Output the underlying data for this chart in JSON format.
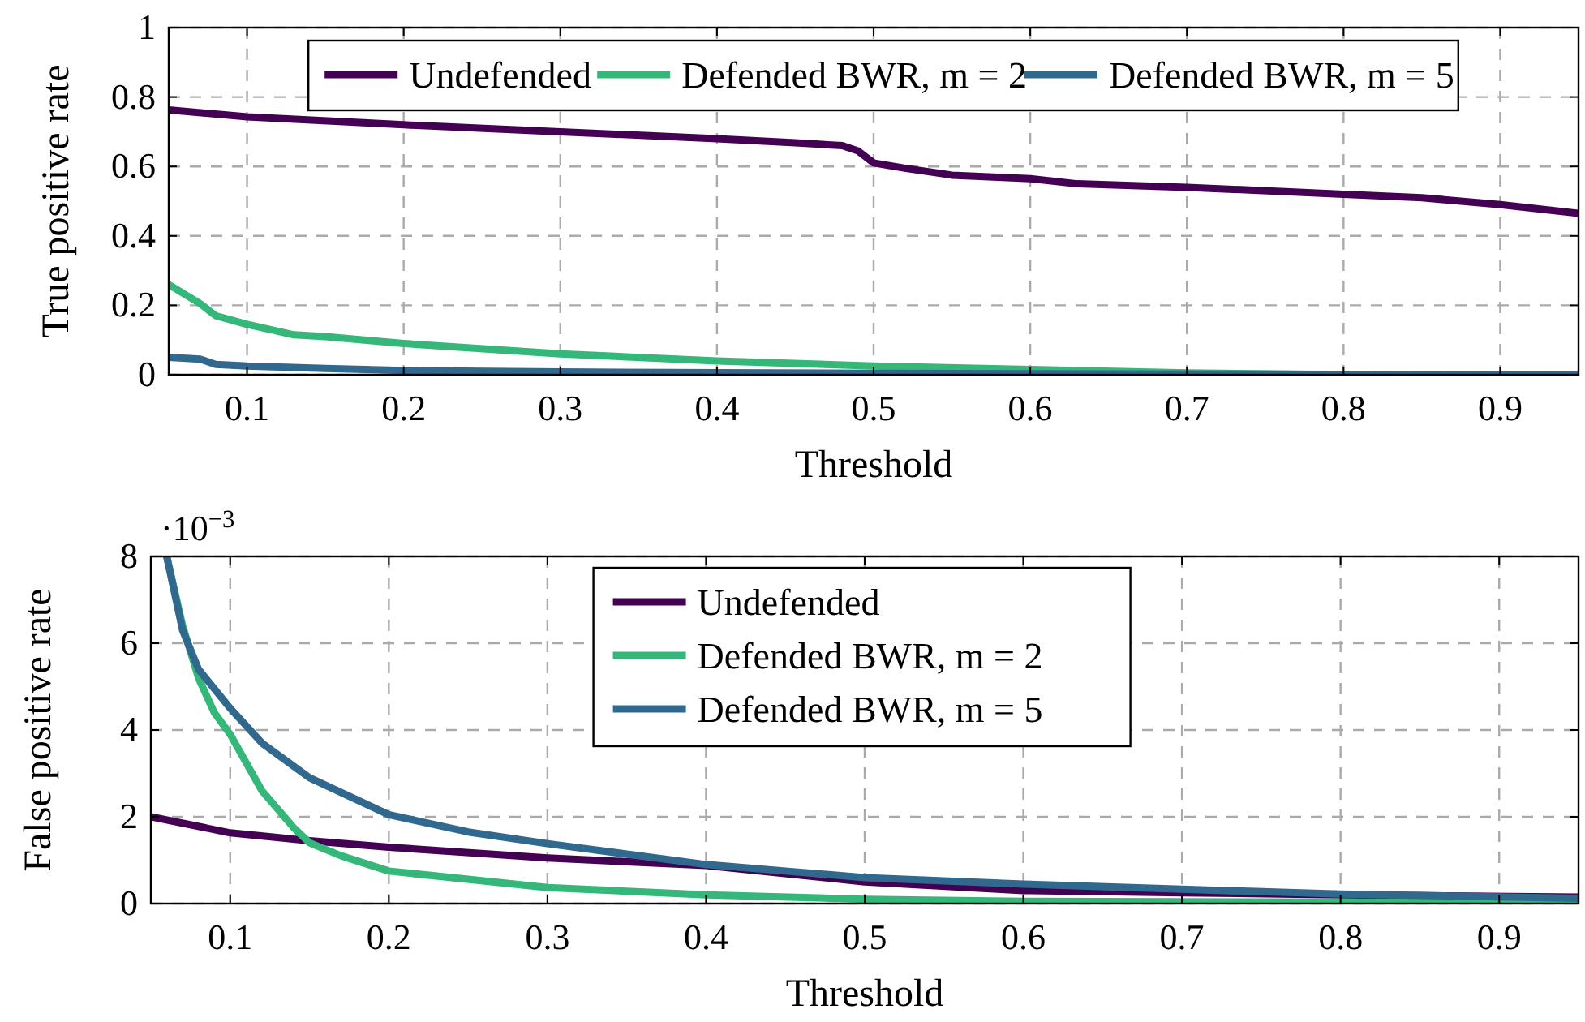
{
  "chart_data": [
    {
      "type": "line",
      "xlabel": "Threshold",
      "ylabel": "True positive rate",
      "xlim": [
        0.05,
        0.95
      ],
      "ylim": [
        0,
        1
      ],
      "xticks": [
        0.1,
        0.2,
        0.3,
        0.4,
        0.5,
        0.6,
        0.7,
        0.8,
        0.9
      ],
      "yticks": [
        0,
        0.2,
        0.4,
        0.6,
        0.8,
        1
      ],
      "grid": true,
      "legend": "top",
      "line_style": "solid",
      "marker": "none",
      "series": [
        {
          "name": "Undefended",
          "color": "#440154",
          "x": [
            0.05,
            0.1,
            0.2,
            0.3,
            0.4,
            0.45,
            0.48,
            0.49,
            0.5,
            0.52,
            0.55,
            0.6,
            0.63,
            0.7,
            0.8,
            0.85,
            0.9,
            0.95
          ],
          "values": [
            0.763,
            0.743,
            0.72,
            0.7,
            0.68,
            0.668,
            0.66,
            0.645,
            0.61,
            0.595,
            0.575,
            0.565,
            0.55,
            0.54,
            0.52,
            0.51,
            0.49,
            0.465
          ]
        },
        {
          "name": "Defended BWR, m = 2",
          "color": "#35b779",
          "x": [
            0.05,
            0.07,
            0.08,
            0.1,
            0.13,
            0.15,
            0.2,
            0.3,
            0.4,
            0.5,
            0.6,
            0.7,
            0.8,
            0.95
          ],
          "values": [
            0.26,
            0.205,
            0.17,
            0.145,
            0.115,
            0.11,
            0.09,
            0.06,
            0.04,
            0.025,
            0.015,
            0.005,
            0,
            0
          ]
        },
        {
          "name": "Defended BWR, m = 5",
          "color": "#31688e",
          "x": [
            0.05,
            0.07,
            0.08,
            0.1,
            0.15,
            0.2,
            0.3,
            0.5,
            0.7,
            0.95
          ],
          "values": [
            0.05,
            0.045,
            0.03,
            0.025,
            0.018,
            0.012,
            0.008,
            0.004,
            0.002,
            0
          ]
        }
      ]
    },
    {
      "type": "line",
      "xlabel": "Threshold",
      "ylabel": "False positive rate",
      "annotations": [
        "·10$^{−3}$"
      ],
      "xlim": [
        0.05,
        0.95
      ],
      "ylim": [
        0,
        8
      ],
      "xticks": [
        0.1,
        0.2,
        0.3,
        0.4,
        0.5,
        0.6,
        0.7,
        0.8,
        0.9
      ],
      "yticks": [
        0,
        2,
        4,
        6,
        8
      ],
      "grid": true,
      "legend": "top center",
      "line_style": "solid",
      "marker": "none",
      "series": [
        {
          "name": "Undefended",
          "color": "#440154",
          "x": [
            0.05,
            0.1,
            0.15,
            0.2,
            0.3,
            0.4,
            0.5,
            0.6,
            0.7,
            0.8,
            0.95
          ],
          "values": [
            2.0,
            1.63,
            1.45,
            1.3,
            1.05,
            0.88,
            0.5,
            0.3,
            0.25,
            0.2,
            0.15
          ]
        },
        {
          "name": "Defended BWR, m = 2",
          "color": "#35b779",
          "x": [
            0.06,
            0.07,
            0.08,
            0.09,
            0.1,
            0.12,
            0.14,
            0.15,
            0.17,
            0.2,
            0.3,
            0.4,
            0.5,
            0.6,
            0.95
          ],
          "values": [
            8,
            6.4,
            5.2,
            4.4,
            3.9,
            2.6,
            1.75,
            1.4,
            1.1,
            0.75,
            0.37,
            0.2,
            0.1,
            0.05,
            0.02
          ]
        },
        {
          "name": "Defended BWR, m = 5",
          "color": "#31688e",
          "x": [
            0.06,
            0.07,
            0.08,
            0.1,
            0.12,
            0.15,
            0.2,
            0.25,
            0.3,
            0.4,
            0.45,
            0.5,
            0.6,
            0.7,
            0.8,
            0.95
          ],
          "values": [
            8,
            6.3,
            5.4,
            4.5,
            3.7,
            2.9,
            2.05,
            1.65,
            1.38,
            0.9,
            0.75,
            0.6,
            0.45,
            0.33,
            0.22,
            0.12
          ]
        }
      ]
    }
  ]
}
